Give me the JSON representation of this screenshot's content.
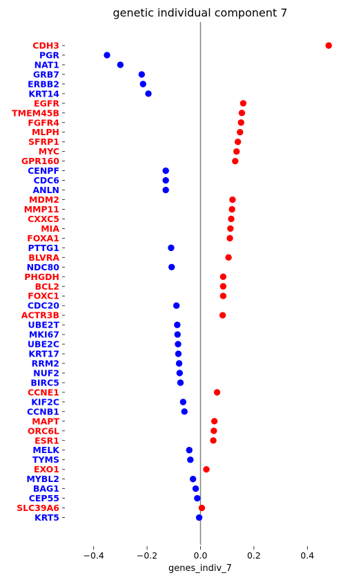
{
  "chart_data": {
    "type": "scatter",
    "title": "genetic individual component 7",
    "xlabel": "genes_indiv_7",
    "ylabel": "",
    "xlim": [
      -0.5,
      0.5
    ],
    "x_ticks": [
      -0.4,
      -0.2,
      0.0,
      0.2,
      0.4
    ],
    "x_tick_labels": [
      "−0.4",
      "−0.2",
      "0.0",
      "0.2",
      "0.4"
    ],
    "reference_line_x": 0.0,
    "grid": false,
    "legend": "none",
    "colors": {
      "positive": "#ff0000",
      "negative": "#0000ff",
      "refline": "#808080"
    },
    "points": [
      {
        "label": "CDH3",
        "value": 0.48
      },
      {
        "label": "PGR",
        "value": -0.35
      },
      {
        "label": "NAT1",
        "value": -0.3
      },
      {
        "label": "GRB7",
        "value": -0.22
      },
      {
        "label": "ERBB2",
        "value": -0.215
      },
      {
        "label": "KRT14",
        "value": -0.195
      },
      {
        "label": "EGFR",
        "value": 0.16
      },
      {
        "label": "TMEM45B",
        "value": 0.155
      },
      {
        "label": "FGFR4",
        "value": 0.152
      },
      {
        "label": "MLPH",
        "value": 0.148
      },
      {
        "label": "SFRP1",
        "value": 0.14
      },
      {
        "label": "MYC",
        "value": 0.135
      },
      {
        "label": "GPR160",
        "value": 0.13
      },
      {
        "label": "CENPF",
        "value": -0.13
      },
      {
        "label": "CDC6",
        "value": -0.13
      },
      {
        "label": "ANLN",
        "value": -0.13
      },
      {
        "label": "MDM2",
        "value": 0.12
      },
      {
        "label": "MMP11",
        "value": 0.118
      },
      {
        "label": "CXXC5",
        "value": 0.115
      },
      {
        "label": "MIA",
        "value": 0.112
      },
      {
        "label": "FOXA1",
        "value": 0.11
      },
      {
        "label": "PTTG1",
        "value": -0.11
      },
      {
        "label": "BLVRA",
        "value": 0.105
      },
      {
        "label": "NDC80",
        "value": -0.108
      },
      {
        "label": "PHGDH",
        "value": 0.085
      },
      {
        "label": "BCL2",
        "value": 0.085
      },
      {
        "label": "FOXC1",
        "value": 0.085
      },
      {
        "label": "CDC20",
        "value": -0.09
      },
      {
        "label": "ACTR3B",
        "value": 0.083
      },
      {
        "label": "UBE2T",
        "value": -0.087
      },
      {
        "label": "MKI67",
        "value": -0.086
      },
      {
        "label": "UBE2C",
        "value": -0.084
      },
      {
        "label": "KRT17",
        "value": -0.083
      },
      {
        "label": "RRM2",
        "value": -0.08
      },
      {
        "label": "NUF2",
        "value": -0.078
      },
      {
        "label": "BIRC5",
        "value": -0.075
      },
      {
        "label": "CCNE1",
        "value": 0.062
      },
      {
        "label": "KIF2C",
        "value": -0.065
      },
      {
        "label": "CCNB1",
        "value": -0.06
      },
      {
        "label": "MAPT",
        "value": 0.052
      },
      {
        "label": "ORC6L",
        "value": 0.05
      },
      {
        "label": "ESR1",
        "value": 0.048
      },
      {
        "label": "MELK",
        "value": -0.042
      },
      {
        "label": "TYMS",
        "value": -0.038
      },
      {
        "label": "EXO1",
        "value": 0.022
      },
      {
        "label": "MYBL2",
        "value": -0.028
      },
      {
        "label": "BAG1",
        "value": -0.018
      },
      {
        "label": "CEP55",
        "value": -0.012
      },
      {
        "label": "SLC39A6",
        "value": 0.005
      },
      {
        "label": "KRT5",
        "value": -0.005
      }
    ]
  }
}
